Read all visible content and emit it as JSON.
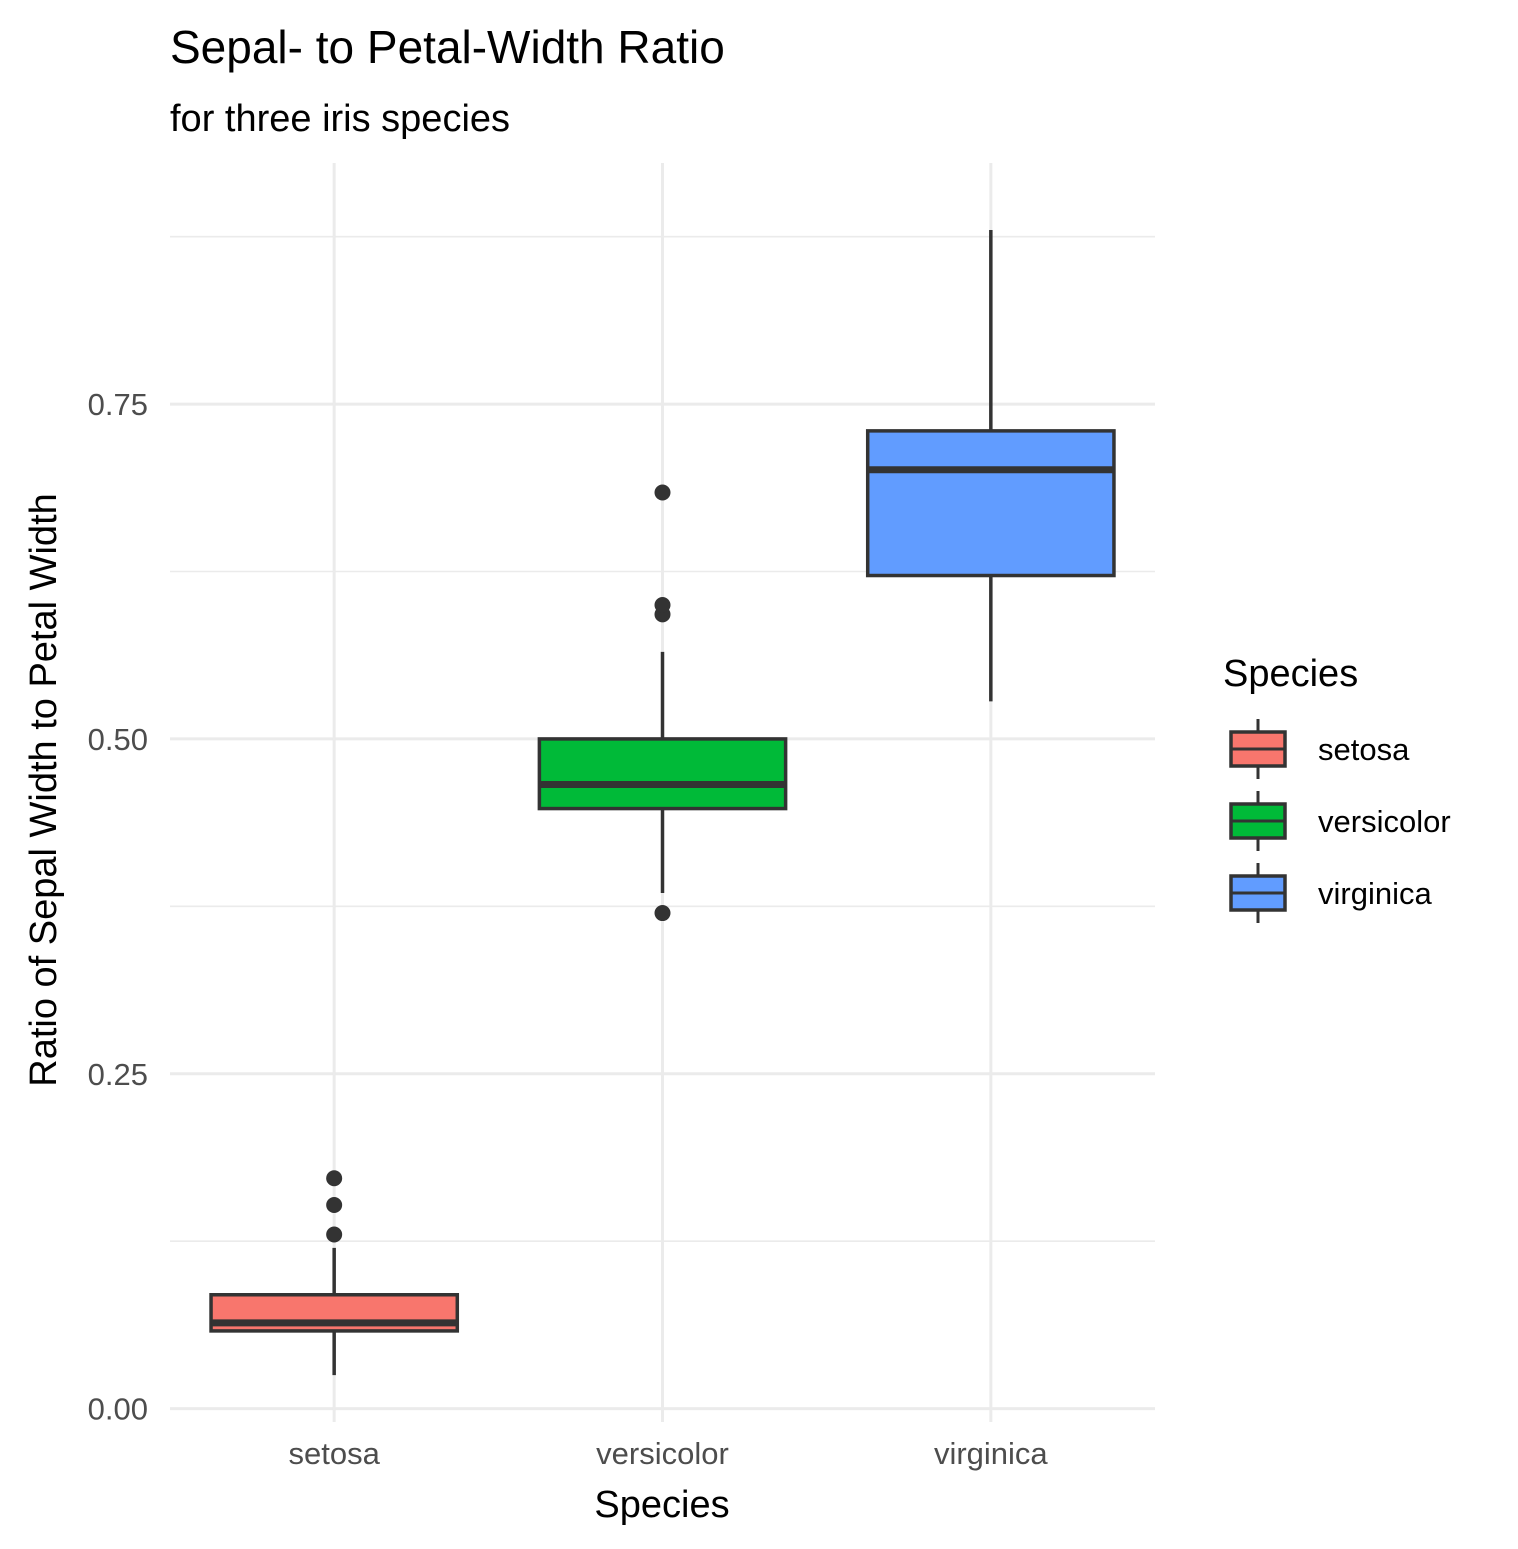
{
  "chart_data": {
    "type": "box",
    "title": "Sepal- to Petal-Width Ratio",
    "subtitle": "for three iris species",
    "xlabel": "Species",
    "ylabel": "Ratio of Sepal Width to Petal Width",
    "categories": [
      "setosa",
      "versicolor",
      "virginica"
    ],
    "ylim": [
      -0.01,
      0.93
    ],
    "yticks": [
      0.0,
      0.25,
      0.5,
      0.75
    ],
    "ytick_labels": [
      "0.00",
      "0.25",
      "0.50",
      "0.75"
    ],
    "grid": true,
    "legend": {
      "title": "Species",
      "position": "right",
      "items": [
        "setosa",
        "versicolor",
        "virginica"
      ]
    },
    "colors": {
      "setosa": "#F8766D",
      "versicolor": "#00BA38",
      "virginica": "#619CFF",
      "outline": "#333333"
    },
    "boxes": [
      {
        "category": "setosa",
        "whisker_low": 0.025,
        "q1": 0.058,
        "median": 0.064,
        "q3": 0.085,
        "whisker_high": 0.12,
        "outliers": [
          0.13,
          0.152,
          0.172
        ]
      },
      {
        "category": "versicolor",
        "whisker_low": 0.385,
        "q1": 0.448,
        "median": 0.466,
        "q3": 0.5,
        "whisker_high": 0.565,
        "outliers": [
          0.37,
          0.593,
          0.6,
          0.684
        ]
      },
      {
        "category": "virginica",
        "whisker_low": 0.528,
        "q1": 0.622,
        "median": 0.701,
        "q3": 0.73,
        "whisker_high": 0.88,
        "outliers": []
      }
    ]
  }
}
